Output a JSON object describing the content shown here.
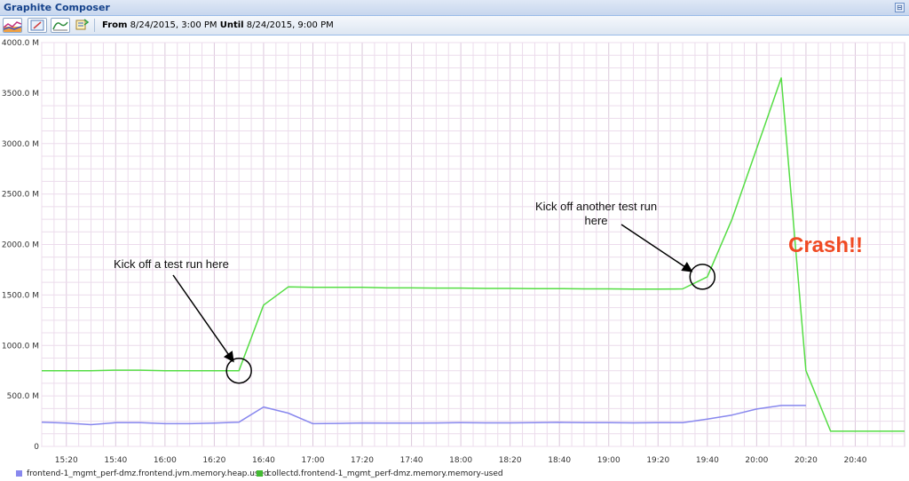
{
  "app": {
    "title": "Graphite Composer"
  },
  "toolbar": {
    "from_label": "From",
    "from_value": "8/24/2015, 3:00 PM",
    "until_label": "Until",
    "until_value": "8/24/2015, 9:00 PM",
    "buttons": [
      "graph-options-icon",
      "edit-graph-icon",
      "update-graph-icon",
      "refresh-icon"
    ]
  },
  "annotations": {
    "first": "Kick off a test run here",
    "second_line1": "Kick off another test run",
    "second_line2": "here",
    "crash": "Crash!!"
  },
  "chart_data": {
    "type": "line",
    "ylim": [
      0,
      4000000000
    ],
    "y_ticks": [
      "0",
      "500.0 M",
      "1000.0 M",
      "1500.0 M",
      "2000.0 M",
      "2500.0 M",
      "3000.0 M",
      "3500.0 M",
      "4000.0 M"
    ],
    "x_ticks": [
      "15:20",
      "15:40",
      "16:00",
      "16:20",
      "16:40",
      "17:00",
      "17:20",
      "17:40",
      "18:00",
      "18:20",
      "18:40",
      "19:00",
      "19:20",
      "19:40",
      "20:00",
      "20:20",
      "20:40"
    ],
    "xlim": [
      "15:10",
      "21:00"
    ],
    "grid": true,
    "legend_position": "bottom",
    "colors": {
      "heap": "#8888ee",
      "memory": "#55dd44"
    },
    "series": [
      {
        "name": "frontend-1_mgmt_perf-dmz.frontend.jvm.memory.heap.used",
        "color": "#8888ee",
        "x": [
          "15:10",
          "15:20",
          "15:30",
          "15:40",
          "15:50",
          "16:00",
          "16:10",
          "16:20",
          "16:30",
          "16:40",
          "16:50",
          "17:00",
          "17:10",
          "17:20",
          "17:30",
          "17:40",
          "17:50",
          "18:00",
          "18:10",
          "18:20",
          "18:30",
          "18:40",
          "18:50",
          "19:00",
          "19:10",
          "19:20",
          "19:30",
          "19:40",
          "19:50",
          "20:00",
          "20:10",
          "20:20"
        ],
        "values": [
          240000000,
          230000000,
          215000000,
          235000000,
          235000000,
          225000000,
          225000000,
          230000000,
          240000000,
          390000000,
          330000000,
          225000000,
          228000000,
          232000000,
          230000000,
          230000000,
          232000000,
          235000000,
          233000000,
          233000000,
          235000000,
          238000000,
          236000000,
          236000000,
          233000000,
          236000000,
          236000000,
          270000000,
          310000000,
          370000000,
          405000000,
          405000000
        ]
      },
      {
        "name": "collectd.frontend-1_mgmt_perf-dmz.memory.memory-used",
        "color": "#55dd44",
        "x": [
          "15:10",
          "15:20",
          "15:30",
          "15:40",
          "15:50",
          "16:00",
          "16:10",
          "16:20",
          "16:30",
          "16:40",
          "16:50",
          "17:00",
          "17:10",
          "17:20",
          "17:30",
          "17:40",
          "17:50",
          "18:00",
          "18:10",
          "18:20",
          "18:30",
          "18:40",
          "18:50",
          "19:00",
          "19:10",
          "19:20",
          "19:30",
          "19:40",
          "19:50",
          "20:00",
          "20:10",
          "20:20",
          "20:30",
          "20:40",
          "20:50",
          "21:00"
        ],
        "values": [
          750000000,
          750000000,
          750000000,
          755000000,
          755000000,
          750000000,
          750000000,
          750000000,
          750000000,
          1400000000,
          1580000000,
          1575000000,
          1575000000,
          1575000000,
          1570000000,
          1570000000,
          1568000000,
          1568000000,
          1565000000,
          1565000000,
          1563000000,
          1563000000,
          1560000000,
          1560000000,
          1558000000,
          1558000000,
          1560000000,
          1680000000,
          2250000000,
          2950000000,
          3650000000,
          750000000,
          150000000,
          150000000,
          150000000,
          150000000
        ]
      }
    ]
  }
}
